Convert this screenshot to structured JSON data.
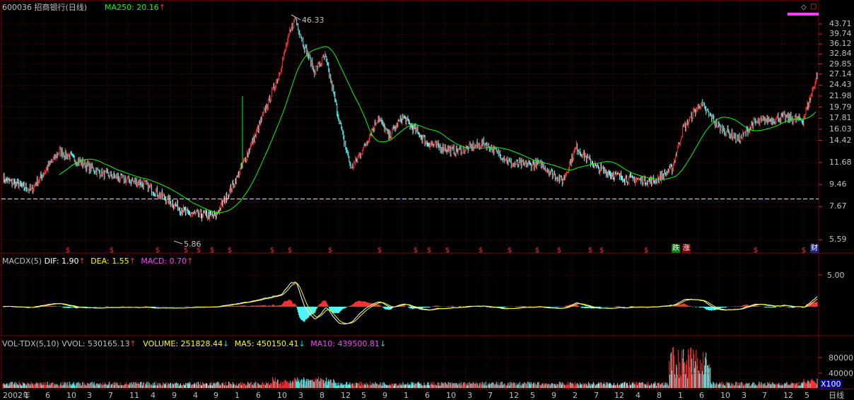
{
  "header": {
    "code": "600036",
    "name": "招商银行",
    "period": "(日线)",
    "ma_label": "MA250:",
    "ma_value": "20.16",
    "ma_trend": "↑",
    "high_label": "46.33",
    "low_label": "5.86"
  },
  "price_axis": [
    "43.71",
    "39.74",
    "36.12",
    "32.84",
    "29.85",
    "27.14",
    "24.43",
    "21.98",
    "19.79",
    "17.81",
    "16.03",
    "14.42",
    "11.68",
    "9.46",
    "7.67",
    "5.59"
  ],
  "macd_panel": {
    "name": "MACDX(5)",
    "dif_label": "DIF:",
    "dif_value": "1.90",
    "dea_label": "DEA:",
    "dea_value": "1.55",
    "macd_label": "MACD:",
    "macd_value": "0.70",
    "trend_up": "↑",
    "axis": [
      "5.00"
    ]
  },
  "volume_panel": {
    "name": "VOL-TDX(5,10)",
    "vvol_label": "VVOL:",
    "vvol_value": "530165.13",
    "volume_label": "VOLUME:",
    "volume_value": "251828.44",
    "ma5_label": "MA5:",
    "ma5_value": "450150.41",
    "ma10_label": "MA10:",
    "ma10_value": "439500.81",
    "trend_up": "↑",
    "trend_down": "↓",
    "axis": [
      "80000",
      "40000"
    ],
    "unit": "X100"
  },
  "time_axis": [
    "2002年",
    "1",
    "6",
    "10",
    "3",
    "7",
    "11",
    "4",
    "9",
    "4",
    "9",
    "1",
    "6",
    "10",
    "3",
    "8",
    "12",
    "5",
    "9",
    "1",
    "6",
    "10",
    "3",
    "7",
    "12",
    "5",
    "9",
    "2",
    "7",
    "12",
    "4",
    "8",
    "1",
    "6",
    "10",
    "3",
    "7",
    "12",
    "5"
  ],
  "period_tag": "日线",
  "markers": {
    "dividend_symbol": "$",
    "fall_tag": "跌",
    "rise_tag": "涨",
    "finance_tag": "财"
  },
  "colors": {
    "background": "#000000",
    "grid": "#800000",
    "up_candle": "#ff3232",
    "down_candle": "#54ffff",
    "ma250": "#00ff00",
    "dif": "#ffffff",
    "dea": "#ffff00",
    "macd": "#ff40ff"
  }
}
